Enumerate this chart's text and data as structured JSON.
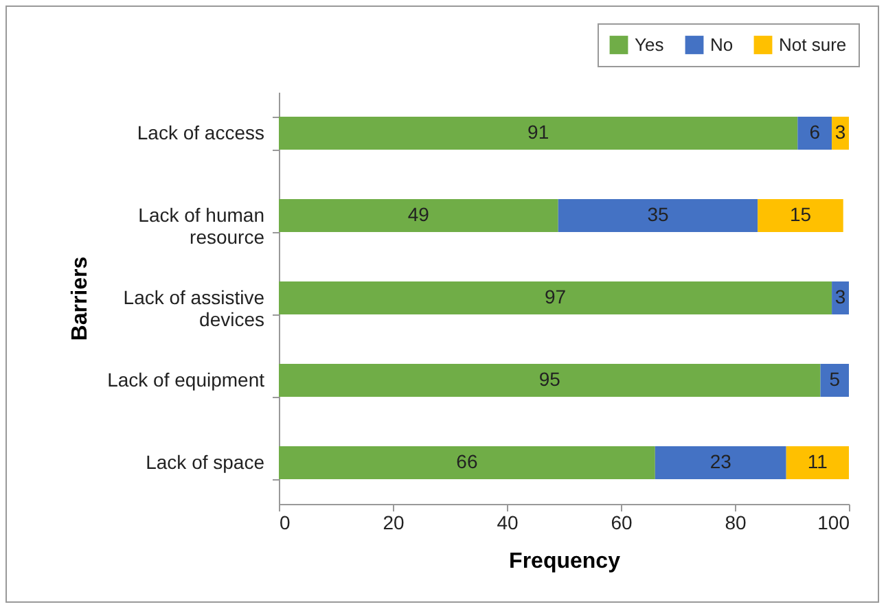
{
  "chart_data": {
    "type": "bar",
    "orientation": "horizontal",
    "stacked": true,
    "xlabel": "Frequency",
    "ylabel": "Barriers",
    "categories": [
      "Lack of access",
      "Lack of human resource",
      "Lack of assistive devices",
      "Lack of equipment",
      "Lack of space"
    ],
    "series": [
      {
        "name": "Yes",
        "color": "#70ad47",
        "values": [
          91,
          49,
          97,
          95,
          66
        ]
      },
      {
        "name": "No",
        "color": "#4472c4",
        "values": [
          6,
          35,
          3,
          5,
          23
        ]
      },
      {
        "name": "Not sure",
        "color": "#ffc000",
        "values": [
          3,
          15,
          null,
          null,
          11
        ]
      }
    ],
    "xlim": [
      0,
      100
    ],
    "xticks": [
      0,
      20,
      40,
      60,
      80,
      100
    ],
    "data_labels": true,
    "legend": "top right",
    "grid": false
  }
}
